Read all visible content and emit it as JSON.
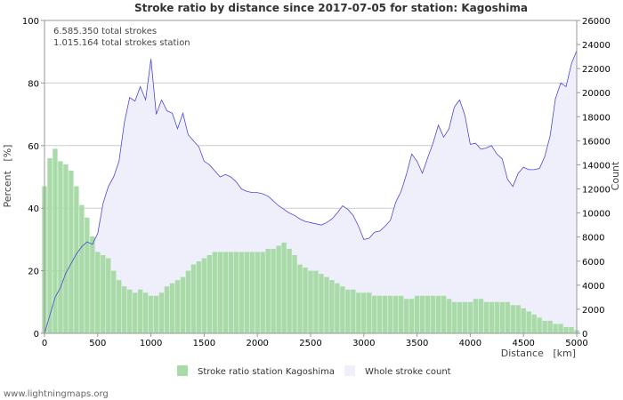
{
  "chart_data": {
    "type": "bar+area",
    "title": "Stroke ratio by distance since 2017-07-05 for station: Kagoshima",
    "stats": {
      "total_strokes": "6.585.350 total strokes",
      "station_strokes": "1.015.164 total strokes station"
    },
    "xlabel": "Distance   [km]",
    "ylabel_left": "Percent   [%]",
    "ylabel_right": "Count",
    "xlim": [
      0,
      5000
    ],
    "ylim_left": [
      0,
      100
    ],
    "ylim_right": [
      0,
      26000
    ],
    "x_ticks": [
      0,
      500,
      1000,
      1500,
      2000,
      2500,
      3000,
      3500,
      4000,
      4500,
      5000
    ],
    "y_ticks_left": [
      0,
      20,
      40,
      60,
      80,
      100
    ],
    "y_ticks_right": [
      0,
      2000,
      4000,
      6000,
      8000,
      10000,
      12000,
      14000,
      16000,
      18000,
      20000,
      22000,
      24000,
      26000
    ],
    "grid": true,
    "legend": [
      {
        "name": "Stroke ratio station Kagoshima",
        "color": "#a8dba8"
      },
      {
        "name": "Whole stroke count",
        "color": "#efeefb"
      }
    ],
    "ratio_series": {
      "name": "Stroke ratio station Kagoshima",
      "unit": "%",
      "x": [
        0,
        50,
        100,
        150,
        200,
        250,
        300,
        350,
        400,
        450,
        500,
        550,
        600,
        650,
        700,
        750,
        800,
        850,
        900,
        950,
        1000,
        1050,
        1100,
        1150,
        1200,
        1250,
        1300,
        1350,
        1400,
        1450,
        1500,
        1550,
        1600,
        1650,
        1700,
        1750,
        1800,
        1850,
        1900,
        1950,
        2000,
        2050,
        2100,
        2150,
        2200,
        2250,
        2300,
        2350,
        2400,
        2450,
        2500,
        2550,
        2600,
        2650,
        2700,
        2750,
        2800,
        2850,
        2900,
        2950,
        3000,
        3050,
        3100,
        3150,
        3200,
        3250,
        3300,
        3350,
        3400,
        3450,
        3500,
        3550,
        3600,
        3650,
        3700,
        3750,
        3800,
        3850,
        3900,
        3950,
        4000,
        4050,
        4100,
        4150,
        4200,
        4250,
        4300,
        4350,
        4400,
        4450,
        4500,
        4550,
        4600,
        4650,
        4700,
        4750,
        4800,
        4850,
        4900,
        4950,
        5000
      ],
      "values": [
        47,
        56,
        59,
        55,
        54,
        52,
        47,
        41,
        37,
        31,
        26,
        25,
        24,
        20,
        17,
        15,
        14,
        13,
        14,
        13,
        12,
        12,
        13,
        15,
        16,
        17,
        18,
        20,
        22,
        23,
        24,
        25,
        26,
        26,
        26,
        26,
        26,
        26,
        26,
        26,
        26,
        26,
        27,
        27,
        28,
        29,
        27,
        25,
        22,
        21,
        20,
        20,
        19,
        18,
        17,
        16,
        15,
        14,
        14,
        13,
        13,
        13,
        12,
        12,
        12,
        12,
        12,
        12,
        11,
        11,
        12,
        12,
        12,
        12,
        12,
        12,
        11,
        10,
        10,
        10,
        10,
        11,
        11,
        10,
        10,
        10,
        10,
        10,
        9,
        9,
        8,
        7,
        6,
        5,
        4,
        4,
        3,
        3,
        2,
        2,
        1
      ]
    },
    "count_series": {
      "name": "Whole stroke count",
      "x": [
        0,
        50,
        100,
        150,
        200,
        250,
        300,
        350,
        400,
        450,
        500,
        550,
        600,
        650,
        700,
        750,
        800,
        850,
        900,
        950,
        1000,
        1050,
        1100,
        1150,
        1200,
        1250,
        1300,
        1350,
        1400,
        1450,
        1500,
        1550,
        1600,
        1650,
        1700,
        1750,
        1800,
        1850,
        1900,
        1950,
        2000,
        2050,
        2100,
        2150,
        2200,
        2250,
        2300,
        2350,
        2400,
        2450,
        2500,
        2550,
        2600,
        2650,
        2700,
        2750,
        2800,
        2850,
        2900,
        2950,
        3000,
        3050,
        3100,
        3150,
        3200,
        3250,
        3300,
        3350,
        3400,
        3450,
        3500,
        3550,
        3600,
        3650,
        3700,
        3750,
        3800,
        3850,
        3900,
        3950,
        4000,
        4050,
        4100,
        4150,
        4200,
        4250,
        4300,
        4350,
        4400,
        4450,
        4500,
        4550,
        4600,
        4650,
        4700,
        4750,
        4800,
        4850,
        4900,
        4950,
        5000
      ],
      "values": [
        0,
        1500,
        3000,
        3800,
        5000,
        5800,
        6600,
        7200,
        7600,
        7400,
        8300,
        10800,
        12200,
        13000,
        14300,
        17500,
        19600,
        19300,
        20500,
        19400,
        22800,
        18200,
        19400,
        18500,
        18300,
        17000,
        18300,
        16500,
        16000,
        15500,
        14300,
        14000,
        13500,
        13000,
        13200,
        13000,
        12600,
        12000,
        11800,
        11700,
        11700,
        11600,
        11400,
        11000,
        10600,
        10300,
        10000,
        9800,
        9500,
        9300,
        9200,
        9100,
        9000,
        9200,
        9500,
        10000,
        10600,
        10300,
        9800,
        8900,
        7800,
        7900,
        8400,
        8500,
        8900,
        9400,
        10900,
        11800,
        13200,
        14900,
        14300,
        13300,
        14600,
        15800,
        17300,
        16300,
        17000,
        18800,
        19400,
        18100,
        15700,
        15800,
        15300,
        15400,
        15600,
        14900,
        14500,
        12800,
        12200,
        13300,
        13800,
        13600,
        13600,
        13700,
        14700,
        16400,
        19500,
        20800,
        20500,
        22400,
        23500
      ]
    }
  },
  "footer": {
    "credit": "www.lightningmaps.org"
  }
}
